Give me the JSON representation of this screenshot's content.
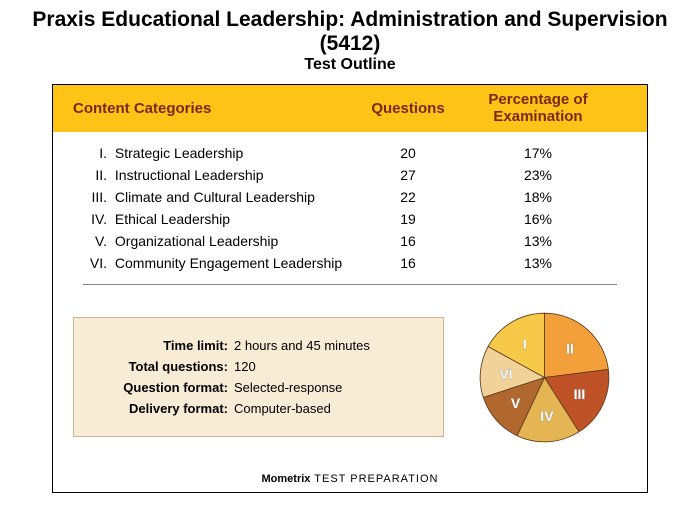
{
  "title": "Praxis Educational Leadership: Administration and Supervision (5412)",
  "subtitle": "Test Outline",
  "header": {
    "cat": "Content Categories",
    "q": "Questions",
    "p_line1": "Percentage of",
    "p_line2": "Examination",
    "bg_color": "#fdc316",
    "text_color": "#7a2810"
  },
  "rows": [
    {
      "rn": "I.",
      "name": "Strategic Leadership",
      "q": "20",
      "p": "17%"
    },
    {
      "rn": "II.",
      "name": "Instructional Leadership",
      "q": "27",
      "p": "23%"
    },
    {
      "rn": "III.",
      "name": "Climate and Cultural Leadership",
      "q": "22",
      "p": "18%"
    },
    {
      "rn": "IV.",
      "name": "Ethical Leadership",
      "q": "19",
      "p": "16%"
    },
    {
      "rn": "V.",
      "name": "Organizational Leadership",
      "q": "16",
      "p": "13%"
    },
    {
      "rn": "VI.",
      "name": "Community Engagement Leadership",
      "q": "16",
      "p": "13%"
    }
  ],
  "info": [
    {
      "label": "Time limit:",
      "value": "2 hours and 45 minutes"
    },
    {
      "label": "Total questions:",
      "value": "120"
    },
    {
      "label": "Question format:",
      "value": "Selected-response"
    },
    {
      "label": "Delivery format:",
      "value": "Computer-based"
    }
  ],
  "infobox_style": {
    "bg": "#f9ecd7",
    "border": "#c9b58e"
  },
  "pie": {
    "type": "pie",
    "start_angle_deg": -90,
    "stroke": "#5a3a1a",
    "stroke_width": 1,
    "slices": [
      {
        "label": "II",
        "pct": 23,
        "color": "#f3a03a"
      },
      {
        "label": "III",
        "pct": 18,
        "color": "#c05228"
      },
      {
        "label": "IV",
        "pct": 16,
        "color": "#e4b552"
      },
      {
        "label": "V",
        "pct": 13,
        "color": "#b0682e"
      },
      {
        "label": "VI",
        "pct": 13,
        "color": "#f1d39a"
      },
      {
        "label": "I",
        "pct": 17,
        "color": "#f7c948"
      }
    ]
  },
  "footer_brand": "Mometrix",
  "footer_tag": " TEST PREPARATION"
}
